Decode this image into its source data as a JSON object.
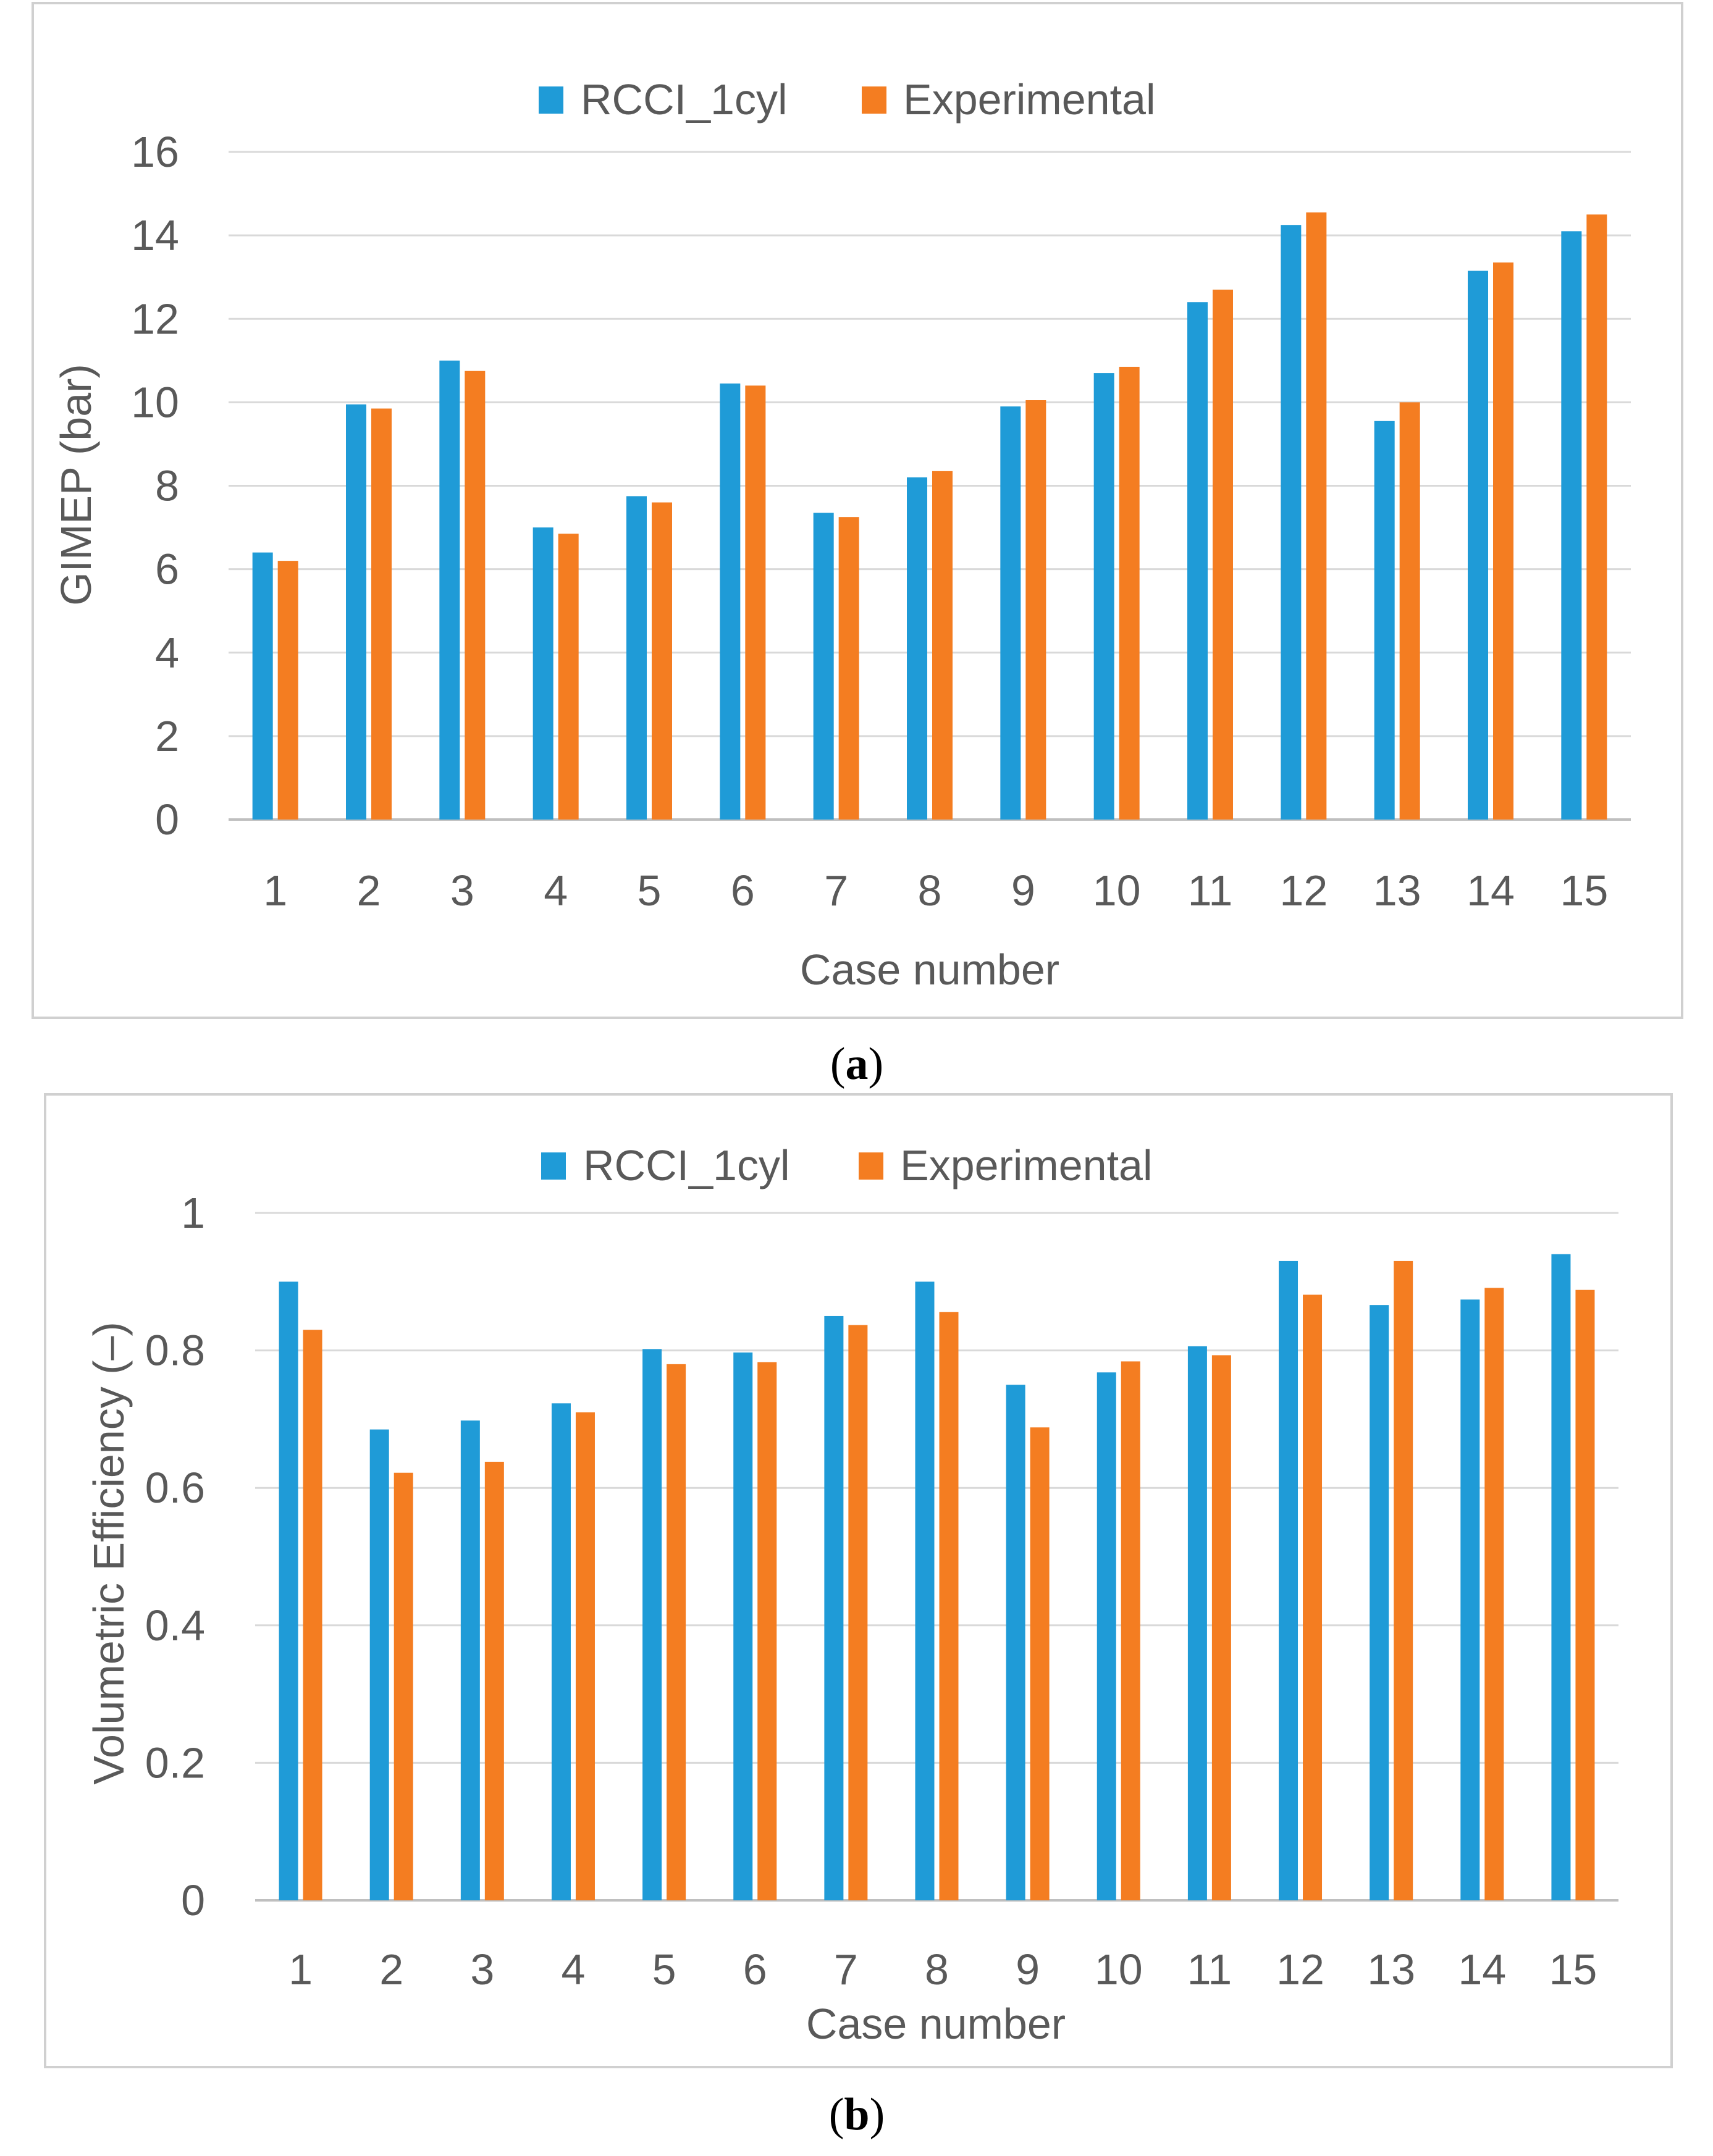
{
  "colors": {
    "series1": "#1f9bd7",
    "series2": "#f47d21",
    "grid": "#d9d9d9",
    "axis": "#bfbfbf",
    "frame": "#d0d0d0",
    "text": "#595959"
  },
  "chart_data": [
    {
      "type": "bar",
      "caption": {
        "prefix": "(",
        "label": "a",
        "suffix": ")"
      },
      "categories": [
        "1",
        "2",
        "3",
        "4",
        "5",
        "6",
        "7",
        "8",
        "9",
        "10",
        "11",
        "12",
        "13",
        "14",
        "15"
      ],
      "series": [
        {
          "name": "RCCI_1cyl",
          "values": [
            6.4,
            9.95,
            11.0,
            7.0,
            7.75,
            10.45,
            7.35,
            8.2,
            9.9,
            10.7,
            12.4,
            14.25,
            9.55,
            13.15,
            14.1
          ]
        },
        {
          "name": "Experimental",
          "values": [
            6.2,
            9.85,
            10.75,
            6.85,
            7.6,
            10.4,
            7.25,
            8.35,
            10.05,
            10.85,
            12.7,
            14.55,
            10.0,
            13.35,
            14.5
          ]
        }
      ],
      "yticks": [
        "0",
        "2",
        "4",
        "6",
        "8",
        "10",
        "12",
        "14",
        "16"
      ],
      "ylim": [
        0,
        16
      ],
      "xlabel": "Case number",
      "ylabel": "GIMEP (bar)",
      "legend": "top-center"
    },
    {
      "type": "bar",
      "caption": {
        "prefix": "(",
        "label": "b",
        "suffix": ")"
      },
      "categories": [
        "1",
        "2",
        "3",
        "4",
        "5",
        "6",
        "7",
        "8",
        "9",
        "10",
        "11",
        "12",
        "13",
        "14",
        "15"
      ],
      "series": [
        {
          "name": "RCCI_1cyl",
          "values": [
            0.9,
            0.685,
            0.698,
            0.723,
            0.802,
            0.797,
            0.85,
            0.9,
            0.75,
            0.768,
            0.806,
            0.93,
            0.866,
            0.874,
            0.94
          ]
        },
        {
          "name": "Experimental",
          "values": [
            0.83,
            0.622,
            0.638,
            0.71,
            0.78,
            0.783,
            0.837,
            0.856,
            0.688,
            0.784,
            0.793,
            0.881,
            0.93,
            0.891,
            0.888
          ]
        }
      ],
      "yticks": [
        "0",
        "0.2",
        "0.4",
        "0.6",
        "0.8",
        "1"
      ],
      "ylim": [
        0,
        1
      ],
      "xlabel": "Case number",
      "ylabel": "Volumetric  Efficiency (–)",
      "legend": "top-center"
    }
  ]
}
